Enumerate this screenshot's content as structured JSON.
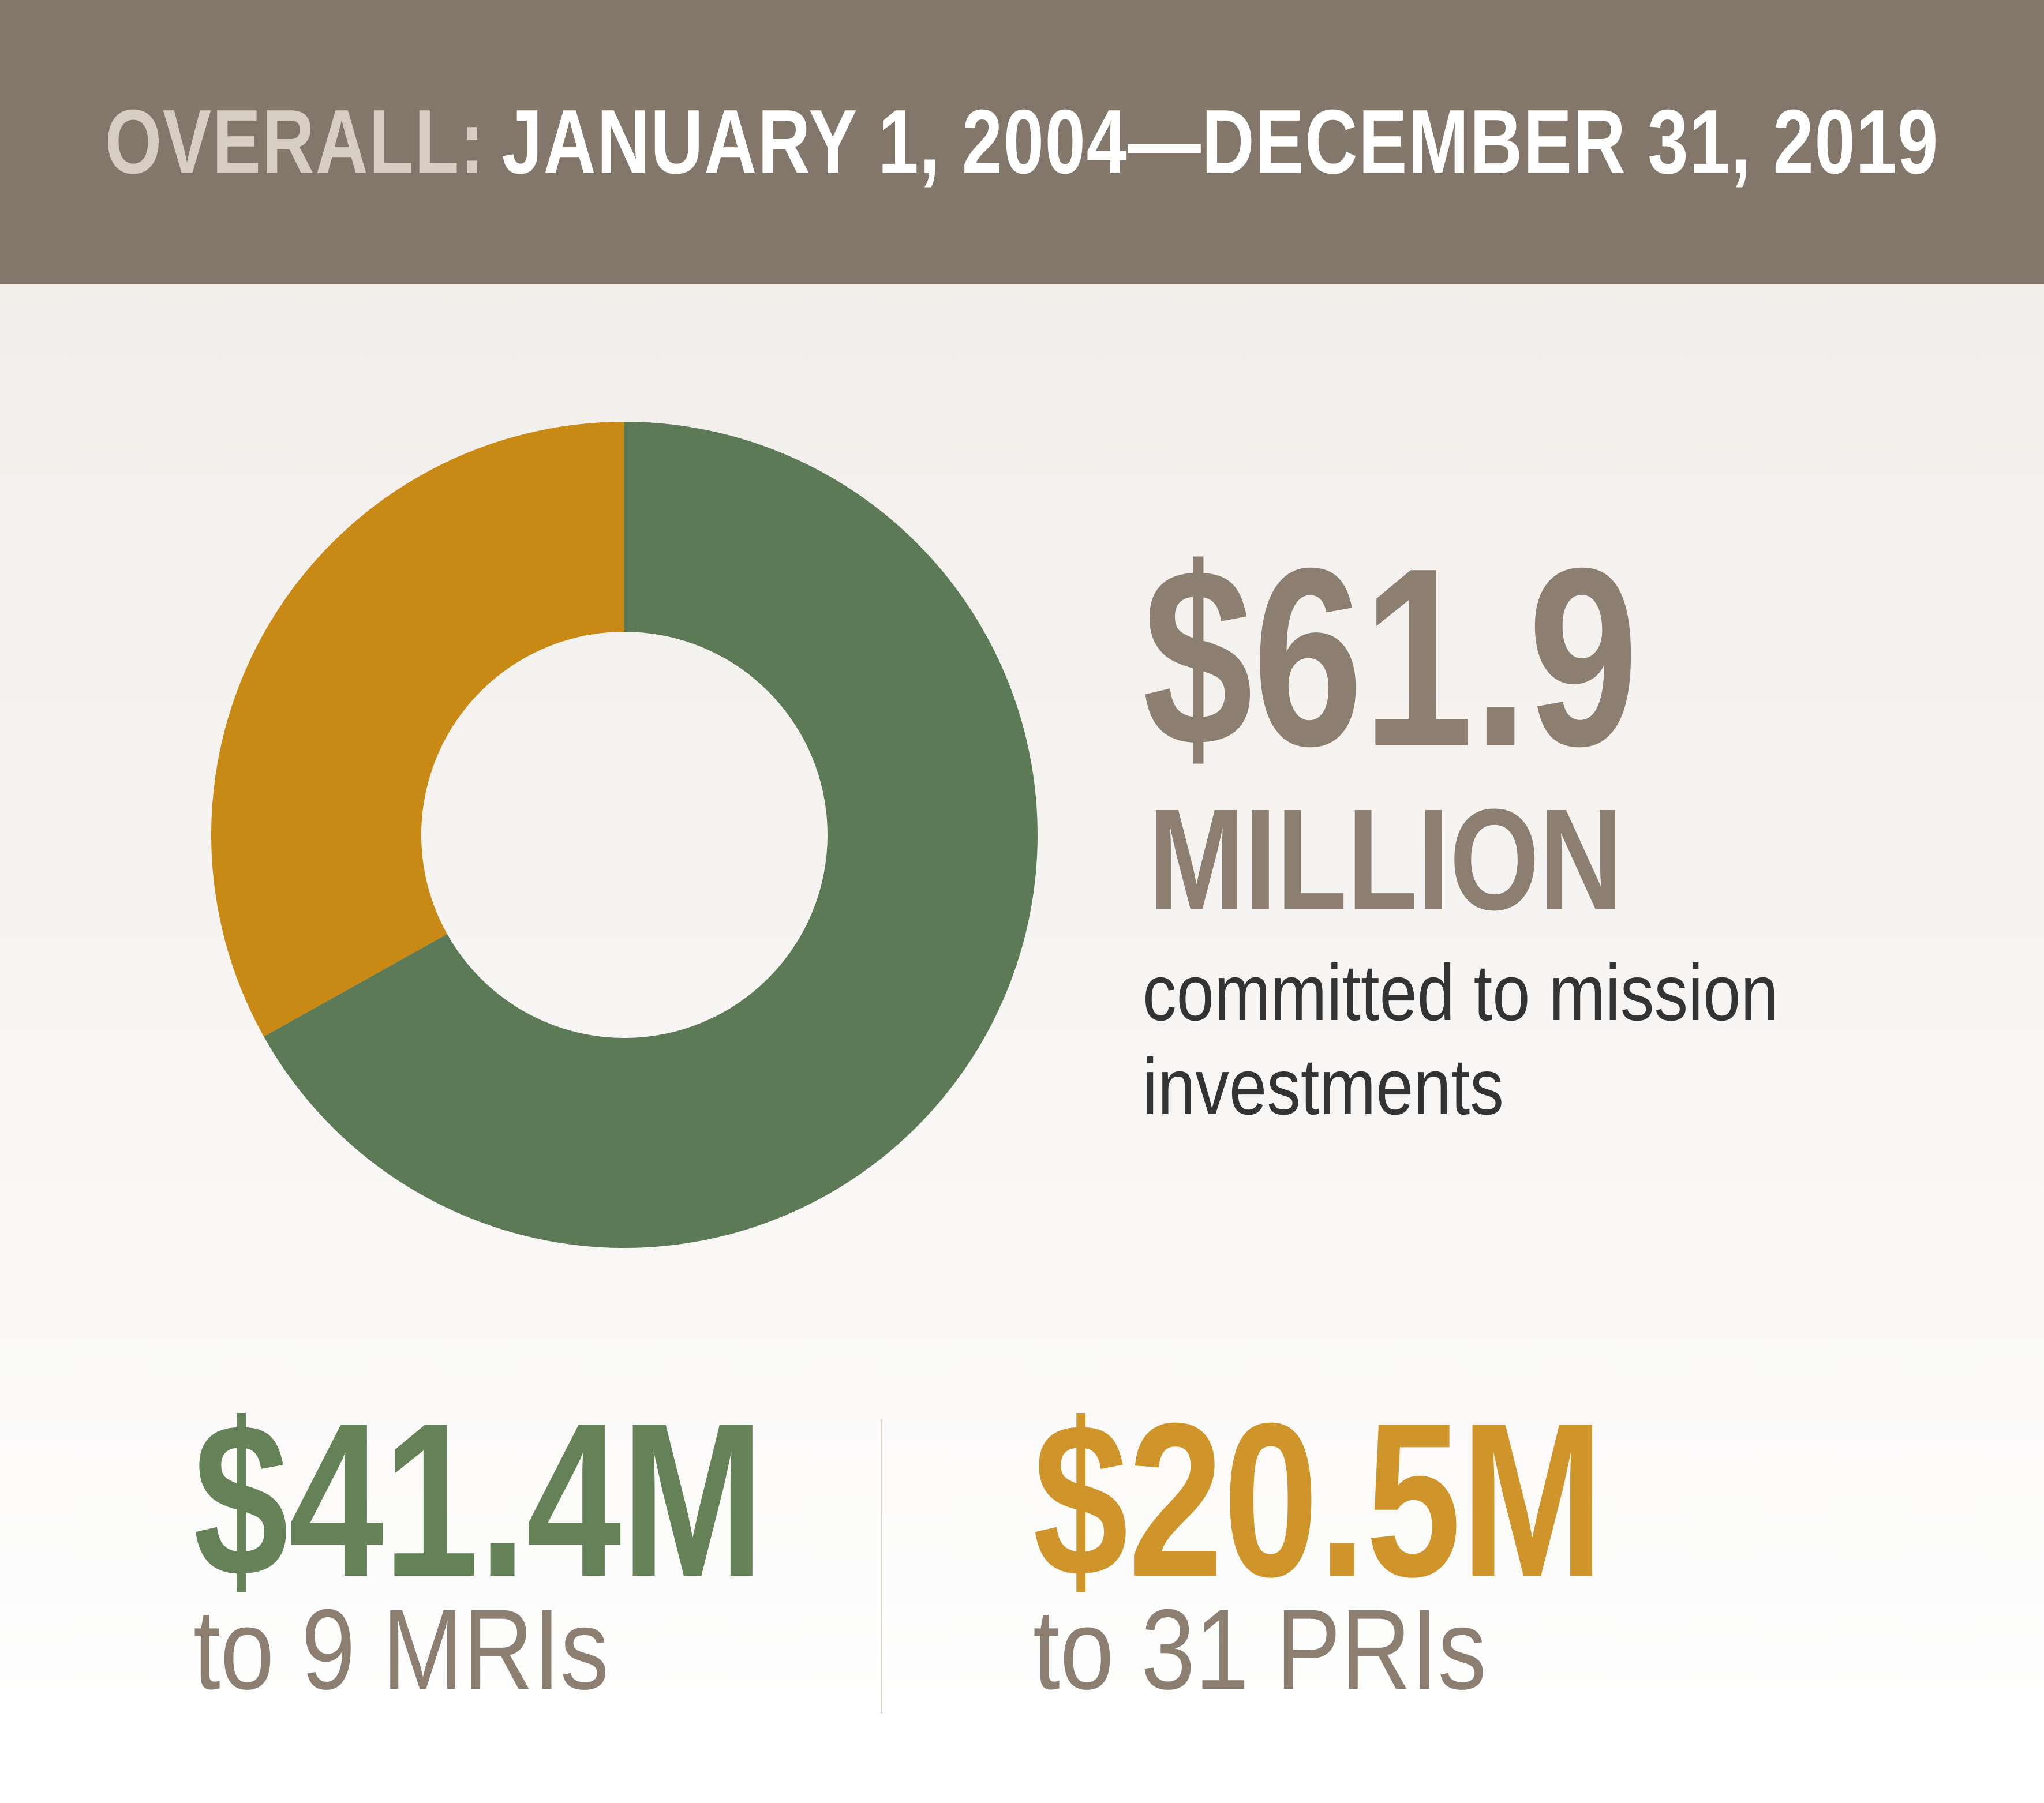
{
  "header": {
    "prefix": "OVERALL:",
    "date_range": "JANUARY 1, 2004—DECEMBER 31, 2019"
  },
  "total": {
    "amount": "$61.9",
    "unit": "MILLION",
    "caption": "committed to mission investments"
  },
  "breakdown": [
    {
      "amount": "$41.4M",
      "caption": "to 9 MRIs"
    },
    {
      "amount": "$20.5M",
      "caption": "to 31 PRIs"
    }
  ],
  "colors": {
    "header_bg": "#83766a",
    "mri": "#5c7a56",
    "pri": "#c88a14",
    "total_text": "#8c7f72"
  },
  "chart_data": {
    "type": "pie",
    "variant": "donut",
    "total": 61.9,
    "unit": "$M",
    "slices": [
      {
        "label": "$41.4M",
        "value": 41.4,
        "color": "#5c7a56"
      },
      {
        "label": "$20.5M",
        "value": 20.5,
        "color": "#c88a14"
      }
    ]
  }
}
